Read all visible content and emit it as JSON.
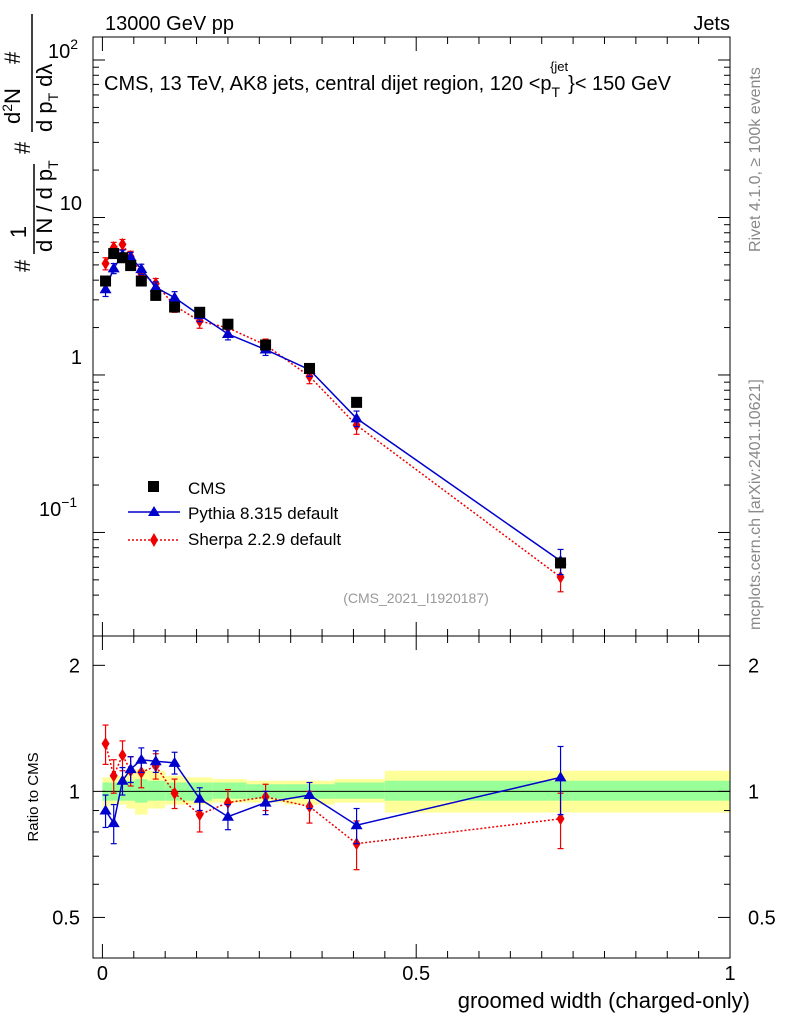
{
  "header": {
    "left": "13000 GeV pp",
    "right": "Jets"
  },
  "side_labels": {
    "rivet": "Rivet 4.1.0, ≥ 100k events",
    "mcplots": "mcplots.cern.ch [arXiv:2401.10621]"
  },
  "colors": {
    "cms": "#000000",
    "pythia": "#0000cc",
    "sherpa": "#ee0000",
    "band_inner": "#99ff99",
    "band_outer": "#ffff99"
  },
  "chart_data": [
    {
      "type": "scatter",
      "title": "CMS, 13 TeV, AK8 jets, central dijet region, 120 <p_T^{jet}< 150 GeV",
      "title_parts": {
        "pre": "CMS, 13 TeV, AK8 jets, central dijet region, 120 <p",
        "sub": "T",
        "sup": "{jet",
        "post": "}< 150 GeV"
      },
      "ylabel": "1/N dN/dp_T d²N/dp_T dλ",
      "ylabel_parts": {
        "a": "#",
        "b": "1",
        "c": "d N / d p",
        "d": "T",
        "e": "#",
        "f": "d",
        "g": "2",
        "h": "N",
        "i": "d p",
        "j": "T",
        "k": "d",
        "l": "λ",
        "m": "#"
      },
      "yscale": "log",
      "ylim": [
        0.022,
        140
      ],
      "xlim": [
        -0.015,
        1.0
      ],
      "ytick_labels": {
        "t100": "10",
        "t100_exp": "2",
        "t10": "10",
        "t1": "1",
        "t01": "10",
        "t01_exp": "−1"
      },
      "watermark": "(CMS_2021_I1920187)",
      "legend_position": "lower-left",
      "legend": [
        "CMS",
        "Pythia 8.315 default",
        "Sherpa 2.2.9 default"
      ],
      "x": [
        0.005,
        0.018,
        0.032,
        0.045,
        0.062,
        0.085,
        0.115,
        0.155,
        0.2,
        0.26,
        0.33,
        0.405,
        0.73
      ],
      "series": [
        {
          "name": "CMS",
          "marker": "square",
          "values": [
            3.95,
            5.9,
            5.55,
            4.95,
            3.95,
            3.2,
            2.7,
            2.5,
            2.1,
            1.55,
            1.1,
            0.67,
            0.064
          ]
        },
        {
          "name": "Pythia 8.315 default",
          "marker": "triangle",
          "line": "solid",
          "values": [
            3.5,
            4.75,
            5.8,
            5.6,
            4.7,
            3.6,
            3.1,
            2.4,
            1.82,
            1.45,
            1.08,
            0.53,
            0.066
          ],
          "err": [
            0.35,
            0.35,
            0.4,
            0.4,
            0.35,
            0.3,
            0.28,
            0.22,
            0.15,
            0.12,
            0.1,
            0.06,
            0.012
          ]
        },
        {
          "name": "Sherpa 2.2.9 default",
          "marker": "diamond",
          "line": "dotted",
          "values": [
            5.1,
            6.45,
            6.75,
            5.65,
            4.4,
            3.8,
            2.75,
            2.2,
            1.99,
            1.55,
            0.98,
            0.48,
            0.052
          ],
          "err": [
            0.45,
            0.5,
            0.5,
            0.45,
            0.35,
            0.3,
            0.25,
            0.22,
            0.17,
            0.14,
            0.1,
            0.06,
            0.01
          ]
        }
      ]
    },
    {
      "type": "scatter",
      "ylabel": "Ratio to CMS",
      "xlabel": "groomed width (charged-only)",
      "ylim": [
        0.4,
        2.35
      ],
      "xlim": [
        -0.015,
        1.0
      ],
      "yticks": [
        0.5,
        1,
        2
      ],
      "ytick_labels": [
        "0.5",
        "1",
        "2"
      ],
      "xticks": [
        0,
        0.5,
        1
      ],
      "xtick_labels": [
        "0",
        "0.5",
        "1"
      ],
      "reference_line": 1.0,
      "x": [
        0.005,
        0.018,
        0.032,
        0.045,
        0.062,
        0.085,
        0.115,
        0.155,
        0.2,
        0.26,
        0.33,
        0.405,
        0.73
      ],
      "series": [
        {
          "name": "Pythia 8.315 default",
          "marker": "triangle",
          "line": "solid",
          "values": [
            0.9,
            0.84,
            1.06,
            1.13,
            1.19,
            1.18,
            1.17,
            0.96,
            0.87,
            0.94,
            0.98,
            0.83,
            1.08
          ],
          "err": [
            0.08,
            0.09,
            0.08,
            0.08,
            0.08,
            0.07,
            0.07,
            0.06,
            0.06,
            0.06,
            0.07,
            0.08,
            0.2
          ]
        },
        {
          "name": "Sherpa 2.2.9 default",
          "marker": "diamond",
          "line": "dotted",
          "values": [
            1.3,
            1.09,
            1.22,
            1.12,
            1.11,
            1.15,
            0.99,
            0.88,
            0.94,
            0.97,
            0.92,
            0.75,
            0.86
          ],
          "err": [
            0.14,
            0.1,
            0.1,
            0.09,
            0.09,
            0.08,
            0.08,
            0.08,
            0.07,
            0.07,
            0.08,
            0.1,
            0.13
          ]
        }
      ],
      "bands": {
        "edges": [
          0.0,
          0.012,
          0.024,
          0.038,
          0.052,
          0.072,
          0.1,
          0.13,
          0.175,
          0.23,
          0.29,
          0.37,
          0.45,
          1.0
        ],
        "inner_lo": [
          0.95,
          0.95,
          0.95,
          0.95,
          0.94,
          0.95,
          0.95,
          0.95,
          0.96,
          0.96,
          0.96,
          0.96,
          0.95
        ],
        "inner_hi": [
          1.05,
          1.05,
          1.05,
          1.06,
          1.07,
          1.06,
          1.05,
          1.05,
          1.05,
          1.04,
          1.04,
          1.05,
          1.06
        ],
        "outer_lo": [
          0.92,
          0.93,
          0.93,
          0.91,
          0.88,
          0.91,
          0.93,
          0.93,
          0.94,
          0.94,
          0.93,
          0.94,
          0.89
        ],
        "outer_hi": [
          1.08,
          1.08,
          1.09,
          1.12,
          1.13,
          1.12,
          1.09,
          1.08,
          1.07,
          1.06,
          1.06,
          1.07,
          1.12
        ]
      }
    }
  ]
}
